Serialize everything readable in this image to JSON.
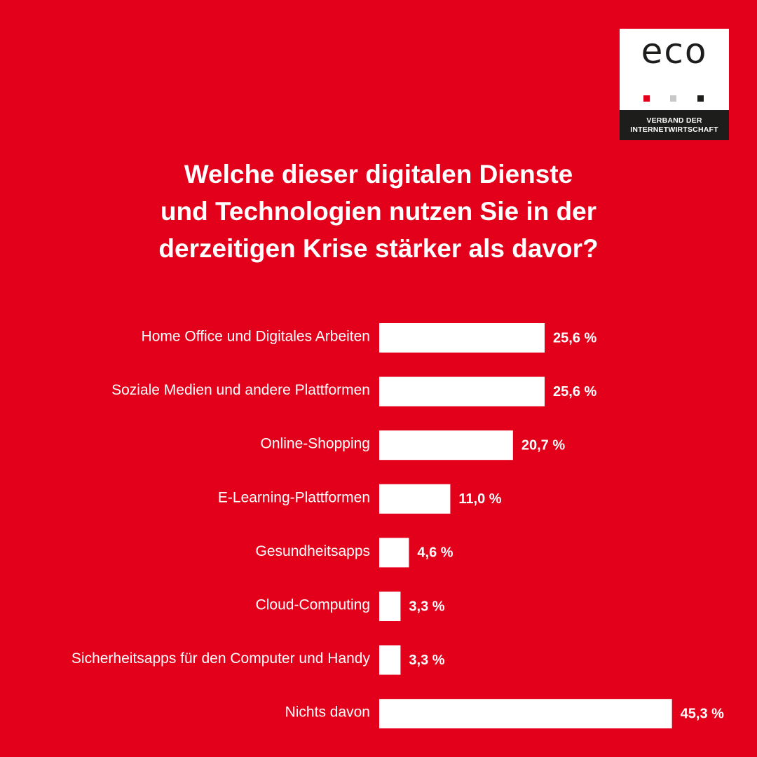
{
  "logo": {
    "wordmark": "eco",
    "tagline_line1": "VERBAND DER",
    "tagline_line2": "INTERNETWIRTSCHAFT",
    "dot_colors": [
      "#e2001a",
      "#c8c8c8",
      "#1d1d1b"
    ]
  },
  "title_lines": [
    "Welche dieser digitalen Dienste",
    "und Technologien nutzen Sie in der",
    "derzeitigen Krise stärker als davor?"
  ],
  "colors": {
    "background": "#e2001a",
    "bar": "#ffffff",
    "text": "#ffffff"
  },
  "chart_data": {
    "type": "bar",
    "orientation": "horizontal",
    "title": "Welche dieser digitalen Dienste und Technologien nutzen Sie in der derzeitigen Krise stärker als davor?",
    "categories": [
      "Home Office und Digitales Arbeiten",
      "Soziale Medien und andere Plattformen",
      "Online-Shopping",
      "E-Learning-Plattformen",
      "Gesundheitsapps",
      "Cloud-Computing",
      "Sicherheitsapps für den Computer und Handy",
      "Nichts davon"
    ],
    "values": [
      25.6,
      25.6,
      20.7,
      11.0,
      4.6,
      3.3,
      3.3,
      45.3
    ],
    "value_labels": [
      "25,6 %",
      "25,6 %",
      "20,7 %",
      "11,0 %",
      "4,6 %",
      "3,3 %",
      "3,3 %",
      "45,3 %"
    ],
    "grid": false,
    "legend": "none"
  }
}
